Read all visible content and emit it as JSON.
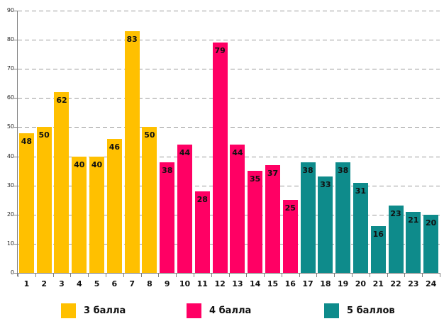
{
  "chart_data": {
    "type": "bar",
    "title": "",
    "xlabel": "",
    "ylabel": "",
    "categories": [
      "1",
      "2",
      "3",
      "4",
      "5",
      "6",
      "7",
      "8",
      "9",
      "10",
      "11",
      "12",
      "13",
      "14",
      "15",
      "16",
      "17",
      "18",
      "19",
      "20",
      "21",
      "22",
      "23",
      "24"
    ],
    "values": [
      48,
      50,
      62,
      40,
      40,
      46,
      83,
      50,
      38,
      44,
      28,
      79,
      44,
      35,
      37,
      25,
      38,
      33,
      38,
      31,
      16,
      23,
      21,
      20
    ],
    "bar_group_index": [
      0,
      0,
      0,
      0,
      0,
      0,
      0,
      0,
      1,
      1,
      1,
      1,
      1,
      1,
      1,
      1,
      2,
      2,
      2,
      2,
      2,
      2,
      2,
      2
    ],
    "groups": [
      {
        "label": "3 балла",
        "color": "#FFC000"
      },
      {
        "label": "4 балла",
        "color": "#FF0064"
      },
      {
        "label": "5 баллов",
        "color": "#0E8B8B"
      }
    ],
    "ylim": [
      0,
      90
    ],
    "yticks": [
      0,
      10,
      20,
      30,
      40,
      50,
      60,
      70,
      80,
      90
    ],
    "grid": "horizontal-dashed",
    "gridline_color": "#9a9a9a",
    "axis_color": "#808080",
    "value_labels": "inside-top",
    "legend_position": "bottom"
  },
  "legend_layout": {
    "item_lefts": [
      86,
      263,
      457
    ]
  }
}
